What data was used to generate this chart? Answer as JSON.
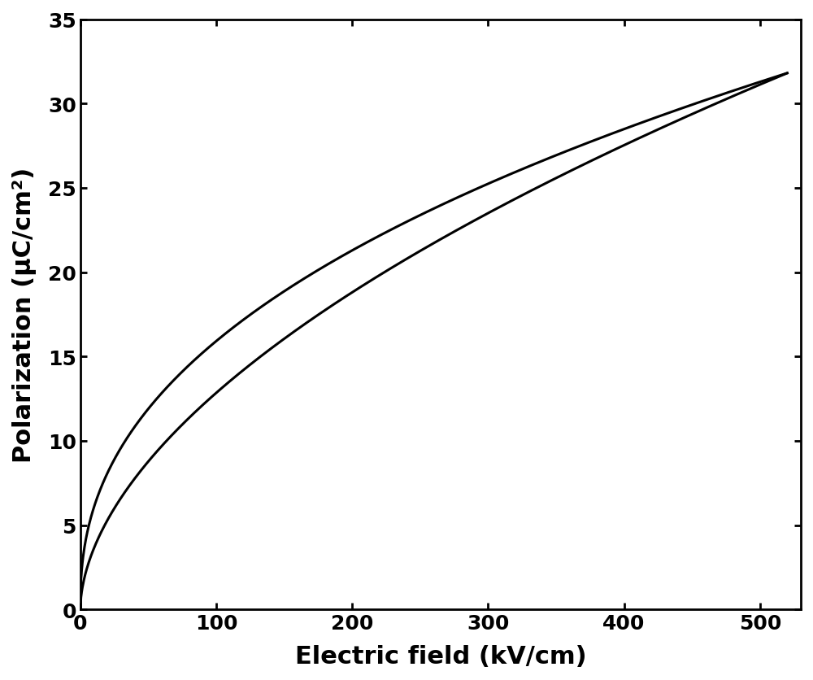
{
  "xlabel": "Electric field (kV/cm)",
  "ylabel": "Polarization (μC/cm²)",
  "xlim": [
    0,
    530
  ],
  "ylim": [
    0,
    35
  ],
  "xticks": [
    0,
    100,
    200,
    300,
    400,
    500
  ],
  "yticks": [
    0,
    5,
    10,
    15,
    20,
    25,
    30,
    35
  ],
  "line_color": "#000000",
  "line_width": 2.2,
  "background_color": "#ffffff",
  "xlabel_fontsize": 22,
  "ylabel_fontsize": 22,
  "tick_fontsize": 18,
  "tick_fontweight": "bold",
  "label_fontweight": "bold",
  "figsize": [
    10.0,
    8.37
  ],
  "dpi": 100,
  "E_max": 520,
  "P_max": 31.8,
  "curve_exponent_upper": 0.42,
  "curve_exponent_lower": 0.55,
  "upper_intercept": 0.0,
  "lower_intercept": 0.0
}
